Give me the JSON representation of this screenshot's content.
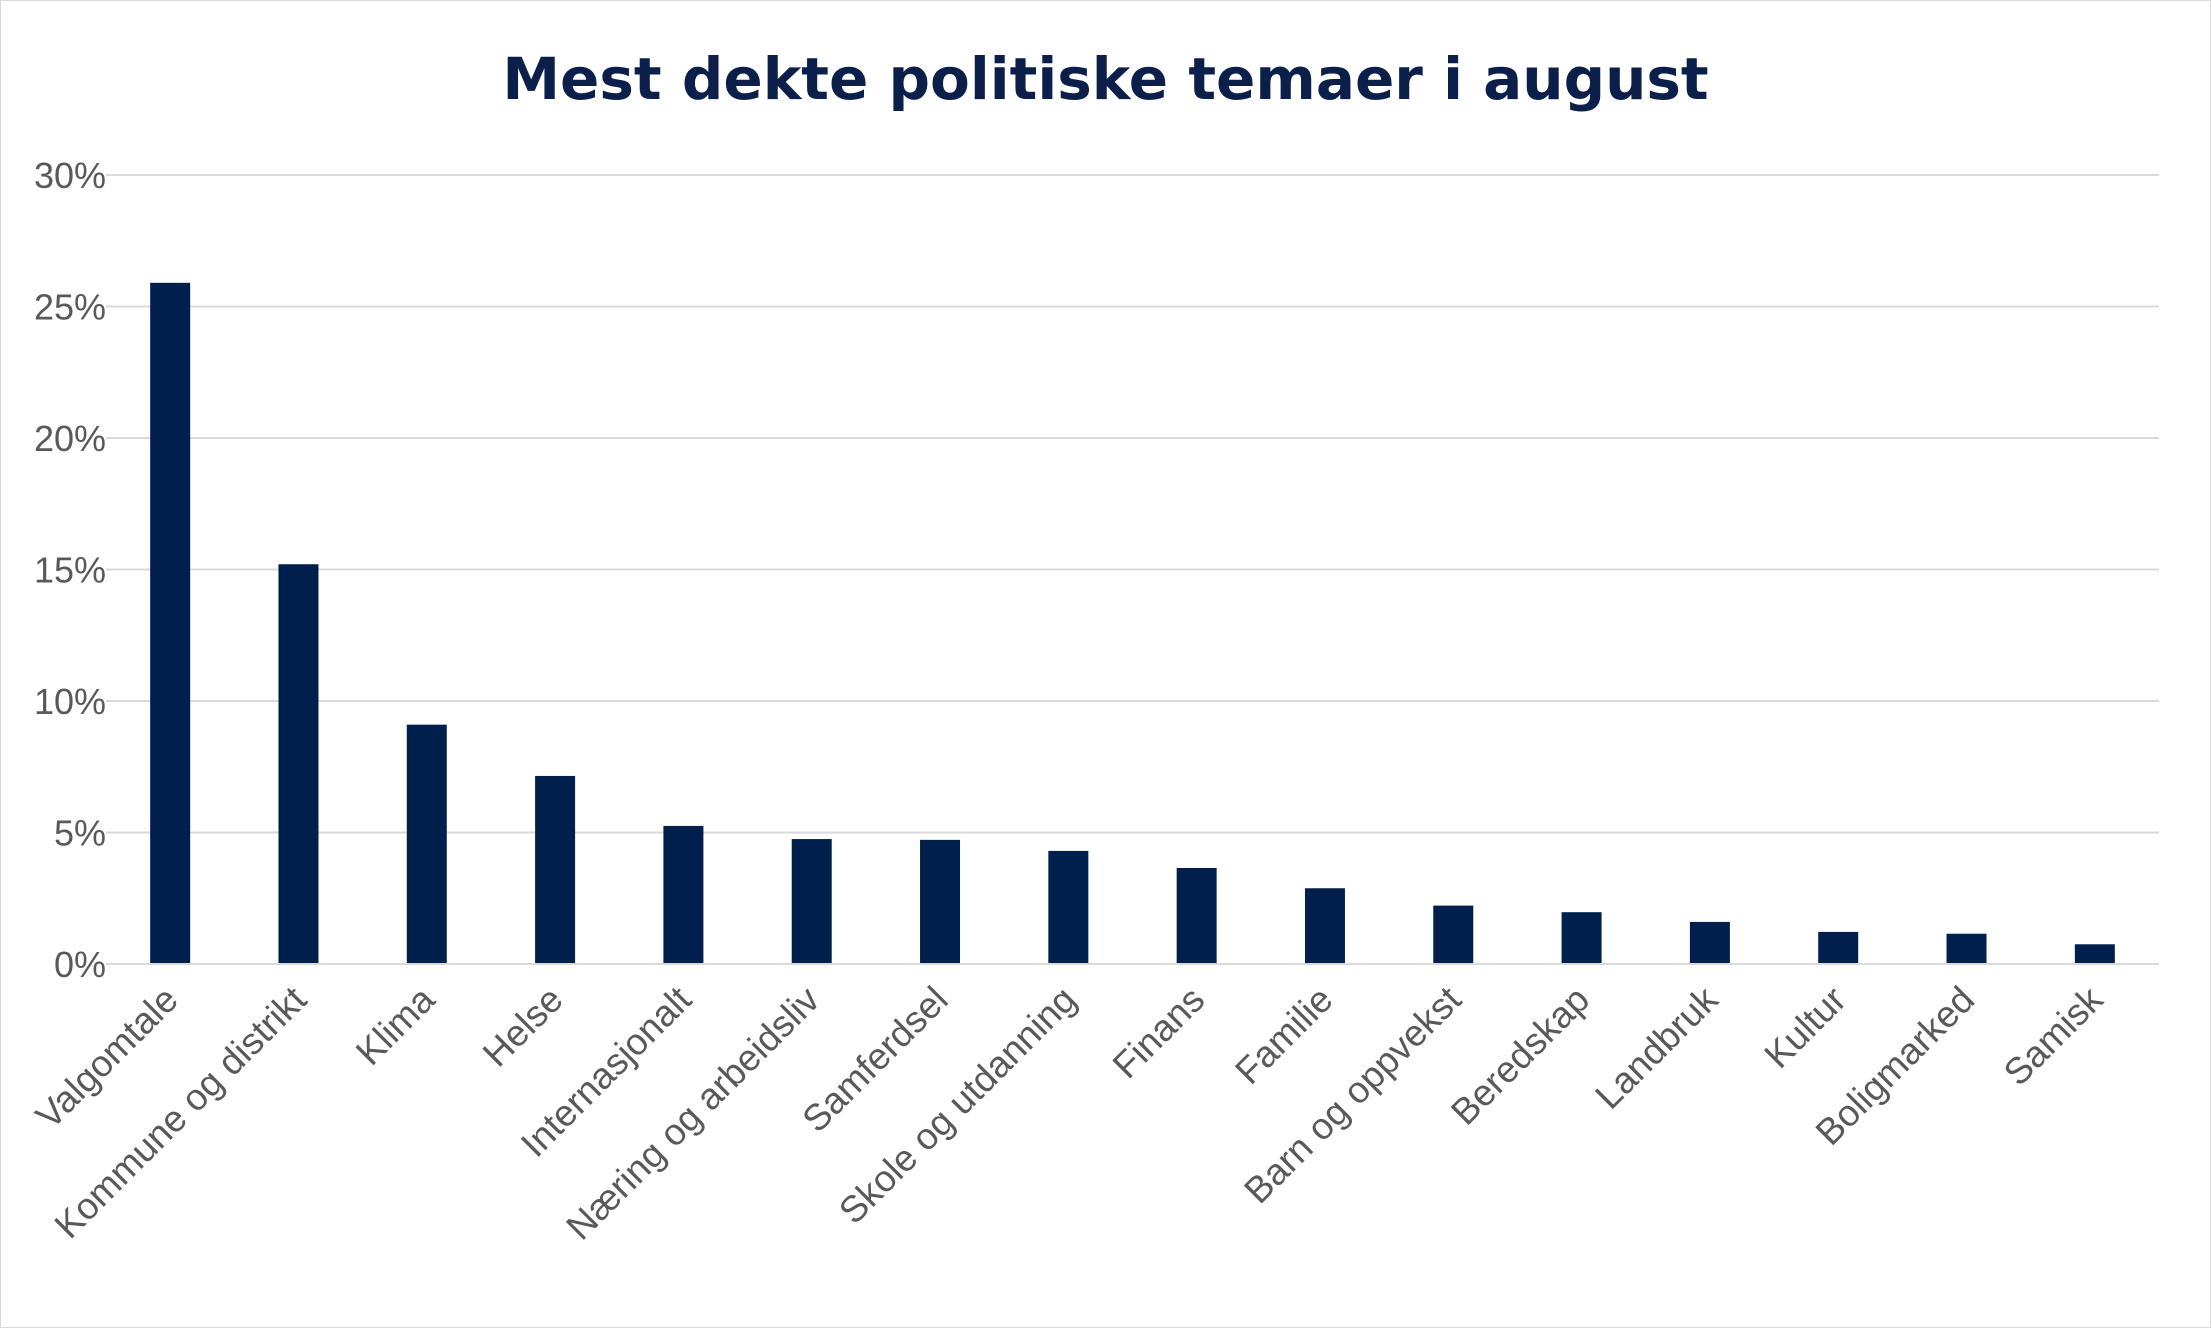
{
  "chart_data": {
    "type": "bar",
    "title": "Mest dekte politiske temaer i august",
    "xlabel": "",
    "ylabel": "",
    "categories": [
      "Valgomtale",
      "Kommune og distrikt",
      "Klima",
      "Helse",
      "Internasjonalt",
      "Næring og arbeidsliv",
      "Samferdsel",
      "Skole og utdanning",
      "Finans",
      "Familie",
      "Barn og oppvekst",
      "Beredskap",
      "Landbruk",
      "Kultur",
      "Boligmarked",
      "Samisk"
    ],
    "values": [
      25.9,
      15.2,
      9.1,
      7.15,
      5.25,
      4.75,
      4.72,
      4.3,
      3.65,
      2.88,
      2.22,
      1.97,
      1.6,
      1.22,
      1.15,
      0.75
    ],
    "ylim": [
      0,
      30
    ],
    "yticks": [
      0,
      5,
      10,
      15,
      20,
      25,
      30
    ],
    "ytick_labels": [
      "0%",
      "5%",
      "10%",
      "15%",
      "20%",
      "25%",
      "30%"
    ],
    "grid": true,
    "legend": "none",
    "colors": {
      "bar": "#001f4d",
      "grid": "#d9d9d9",
      "title": "#0c1f4a",
      "text": "#595959"
    }
  }
}
